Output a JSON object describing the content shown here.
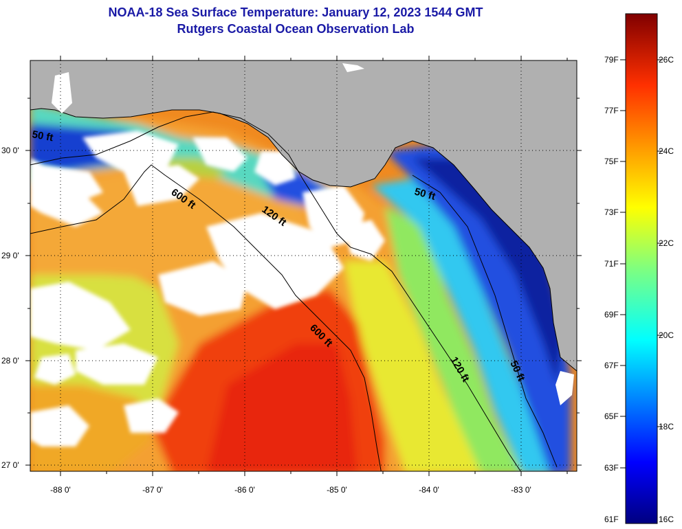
{
  "title": {
    "line1": "NOAA-18 Sea Surface Temperature:  January 12, 2023 1544 GMT",
    "line2": "Rutgers Coastal Ocean Observation Lab"
  },
  "axes": {
    "lon_ticks": [
      "-88 0'",
      "-87 0'",
      "-86 0'",
      "-85 0'",
      "-84 0'",
      "-83 0'"
    ],
    "lat_ticks": [
      "30 0'",
      "29 0'",
      "28 0'",
      "27 0'"
    ]
  },
  "isobaths": {
    "a": "600 ft",
    "b": "120 ft",
    "c": "600 ft",
    "d": "120 ft",
    "e": "50 ft",
    "f": "50 ft",
    "g": "50 ft"
  },
  "colorbar": {
    "fahrenheit": [
      "79F",
      "77F",
      "75F",
      "73F",
      "71F",
      "69F",
      "67F",
      "65F",
      "63F",
      "61F"
    ],
    "celsius": [
      "26C",
      "24C",
      "22C",
      "20C",
      "18C",
      "16C"
    ]
  },
  "colors": {
    "land": "#b0b0b0",
    "cloud": "#ffffff",
    "title": "#1a1aa6"
  }
}
